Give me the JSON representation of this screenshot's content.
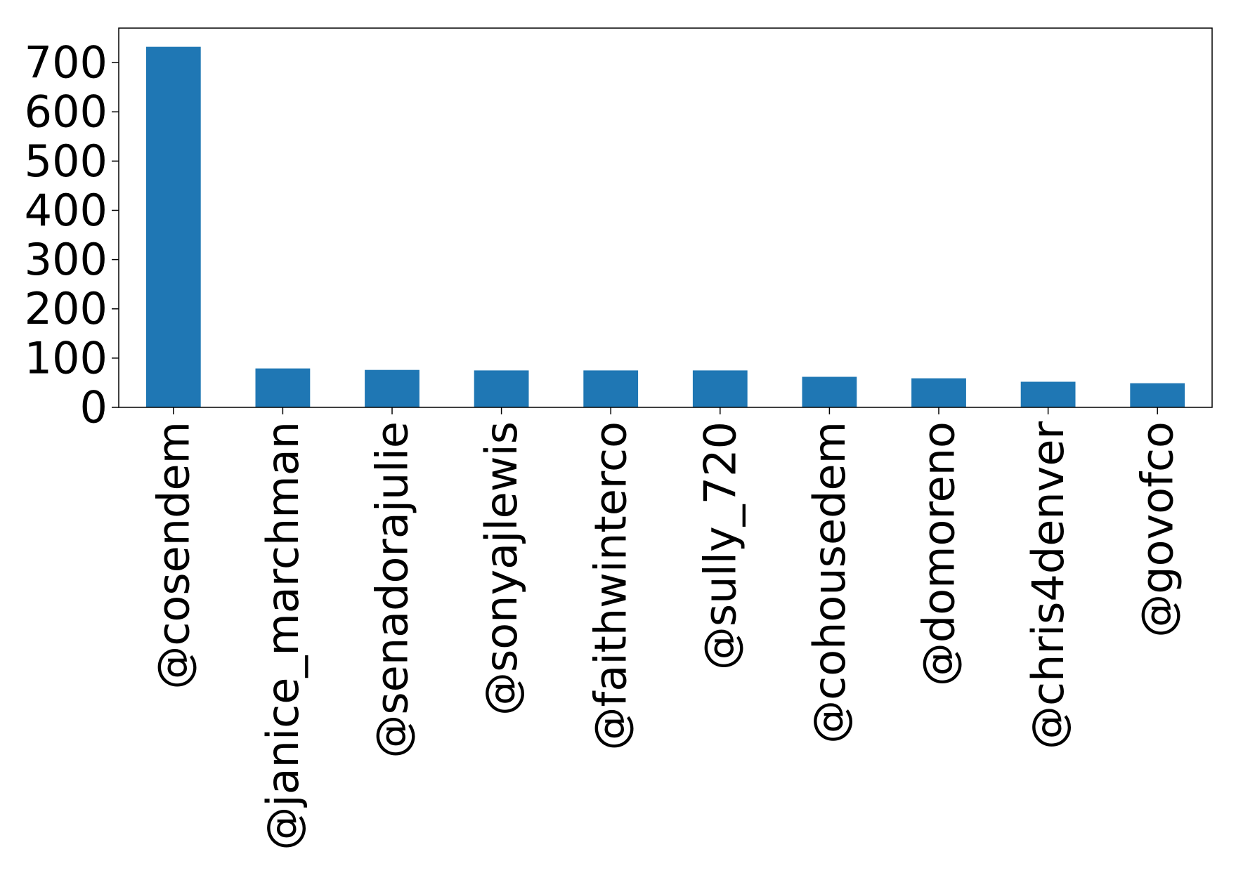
{
  "chart_data": {
    "type": "bar",
    "title": "",
    "xlabel": "",
    "ylabel": "",
    "categories": [
      "@cosendem",
      "@janice_marchman",
      "@senadorajulie",
      "@sonyajlewis",
      "@faithwinterco",
      "@sully_720",
      "@cohousedem",
      "@domoreno",
      "@chris4denver",
      "@govofco"
    ],
    "values": [
      732,
      79,
      76,
      75,
      75,
      75,
      62,
      59,
      52,
      49
    ],
    "ylim": [
      0,
      770
    ],
    "yticks": [
      0,
      100,
      200,
      300,
      400,
      500,
      600,
      700
    ],
    "grid": false,
    "legend": "none",
    "bar_color": "#1f77b4"
  }
}
